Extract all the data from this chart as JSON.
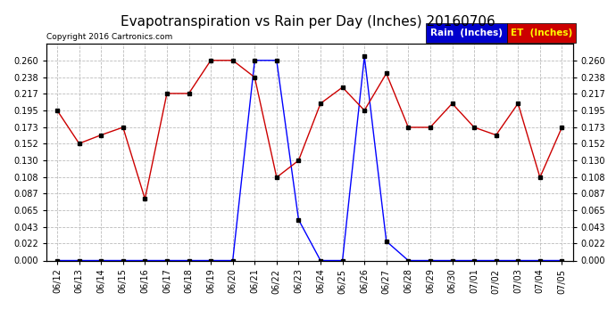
{
  "title": "Evapotranspiration vs Rain per Day (Inches) 20160706",
  "copyright": "Copyright 2016 Cartronics.com",
  "dates": [
    "06/12",
    "06/13",
    "06/14",
    "06/15",
    "06/16",
    "06/17",
    "06/18",
    "06/19",
    "06/20",
    "06/21",
    "06/22",
    "06/23",
    "06/24",
    "06/25",
    "06/26",
    "06/27",
    "06/28",
    "06/29",
    "06/30",
    "07/01",
    "07/02",
    "07/03",
    "07/04",
    "07/05"
  ],
  "rain": [
    0.0,
    0.0,
    0.0,
    0.0,
    0.0,
    0.0,
    0.0,
    0.0,
    0.0,
    0.26,
    0.26,
    0.053,
    0.0,
    0.0,
    0.265,
    0.025,
    0.0,
    0.0,
    0.0,
    0.0,
    0.0,
    0.0,
    0.0,
    0.0
  ],
  "et": [
    0.195,
    0.152,
    0.163,
    0.173,
    0.08,
    0.217,
    0.217,
    0.26,
    0.26,
    0.238,
    0.108,
    0.13,
    0.204,
    0.225,
    0.195,
    0.243,
    0.173,
    0.173,
    0.204,
    0.173,
    0.163,
    0.204,
    0.108,
    0.173
  ],
  "ylim": [
    0,
    0.282
  ],
  "yticks": [
    0.0,
    0.022,
    0.043,
    0.065,
    0.087,
    0.108,
    0.13,
    0.152,
    0.173,
    0.195,
    0.217,
    0.238,
    0.26
  ],
  "rain_color": "#0000ff",
  "et_color": "#cc0000",
  "legend_rain_bg": "#0000cd",
  "legend_et_bg": "#cc0000",
  "background_color": "#ffffff",
  "plot_bg": "#ffffff",
  "grid_color": "#bbbbbb",
  "title_fontsize": 11,
  "tick_fontsize": 7,
  "copyright_fontsize": 6.5,
  "legend_fontsize": 7.5
}
